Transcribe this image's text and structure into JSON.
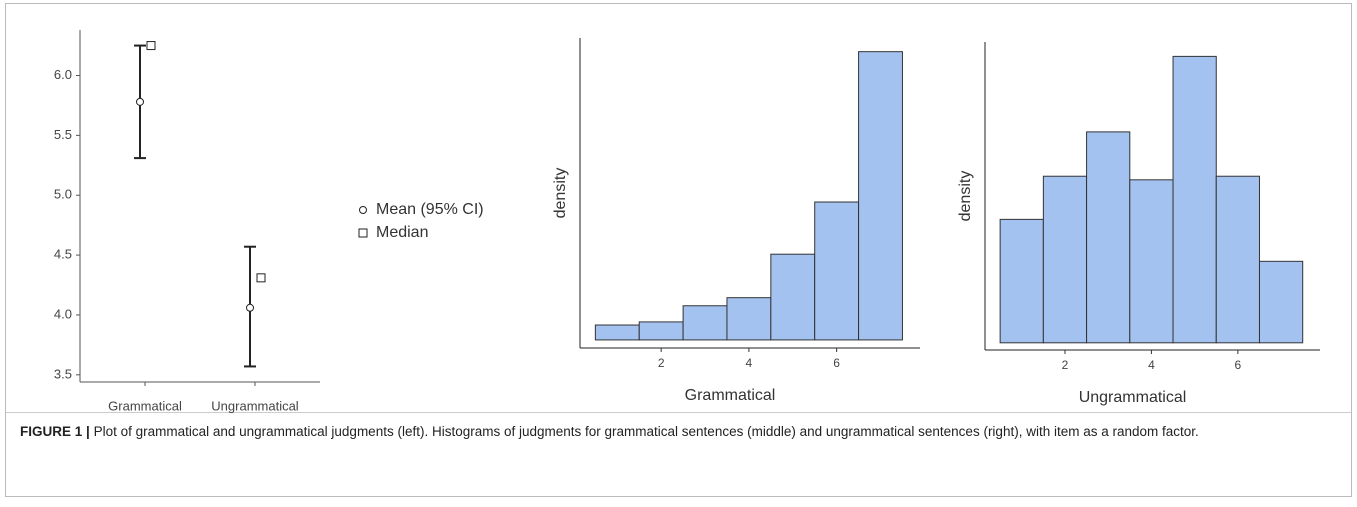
{
  "chart_data": [
    {
      "type": "errorbar",
      "categories": [
        "Grammatical",
        "Ungrammatical"
      ],
      "series": [
        {
          "name": "Mean (95% CI)",
          "values": [
            5.78,
            4.06
          ],
          "ci_lower": [
            5.31,
            3.57
          ],
          "ci_upper": [
            6.25,
            4.57
          ],
          "color": "#222222"
        },
        {
          "name": "Median",
          "values": [
            6.25,
            4.31
          ],
          "color": "#222222"
        }
      ],
      "ylim": [
        3.44,
        6.38
      ],
      "yticks": [
        3.5,
        {
          "value": 4,
          "label": "4.0"
        },
        4.5,
        {
          "value": 5,
          "label": "5.0"
        },
        5.5,
        {
          "value": 6,
          "label": "6.0"
        }
      ],
      "legend": "right"
    },
    {
      "type": "histogram",
      "xlabel": "Grammatical",
      "ylabel": "density",
      "bins": [
        0.5,
        1.5,
        2.5,
        3.5,
        4.5,
        5.5,
        6.5,
        7.5
      ],
      "values": [
        0.024,
        0.029,
        0.055,
        0.068,
        0.138,
        0.222,
        0.464
      ],
      "color": "#a4c2f0",
      "xlim": [
        0.15,
        7.9
      ],
      "xticks": [
        2,
        4,
        6
      ],
      "ylim": [
        -0.013,
        0.486
      ]
    },
    {
      "type": "histogram",
      "xlabel": "Ungrammatical",
      "ylabel": "density",
      "bins": [
        0.5,
        1.5,
        2.5,
        3.5,
        4.5,
        5.5,
        6.5,
        7.5
      ],
      "values": [
        0.103,
        0.139,
        0.176,
        0.136,
        0.239,
        0.139,
        0.068
      ],
      "color": "#a4c2f0",
      "xlim": [
        0.15,
        7.9
      ],
      "xticks": [
        2,
        4,
        6
      ],
      "ylim": [
        -0.006,
        0.251
      ]
    }
  ],
  "caption": {
    "label": "FIGURE 1 |",
    "text": "Plot of grammatical and ungrammatical judgments (left). Histograms of judgments for grammatical sentences (middle) and ungrammatical sentences (right), with item as a random factor."
  }
}
